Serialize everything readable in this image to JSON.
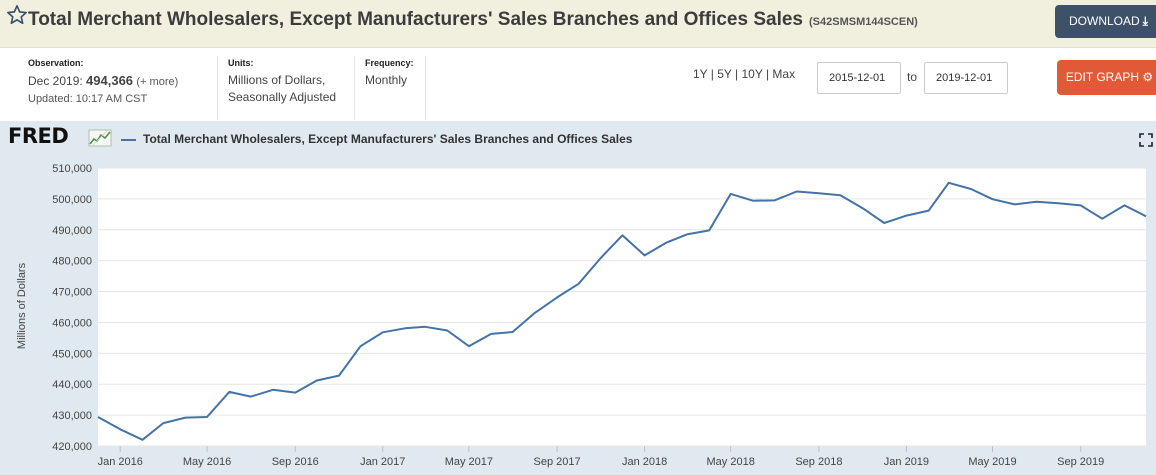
{
  "header": {
    "title": "Total Merchant Wholesalers, Except Manufacturers' Sales Branches and Offices Sales",
    "series_id": "(S42SMSM144SCEN)",
    "download_label": "DOWNLOAD"
  },
  "observation": {
    "label": "Observation:",
    "period": "Dec 2019:",
    "value": "494,366",
    "more": "(+ more)",
    "updated": "Updated: 10:17 AM CST"
  },
  "units": {
    "label": "Units:",
    "line1": "Millions of Dollars,",
    "line2": "Seasonally Adjusted"
  },
  "frequency": {
    "label": "Frequency:",
    "value": "Monthly"
  },
  "controls": {
    "range_links": "1Y | 5Y | 10Y | Max",
    "start_date": "2015-12-01",
    "to_label": "to",
    "end_date": "2019-12-01",
    "edit_graph_label": "EDIT GRAPH"
  },
  "logo": {
    "text": "FRED"
  },
  "colors": {
    "series_line": "#4572a7",
    "plot_background": "#ffffff",
    "panel_background": "#e1e9f0",
    "download_button": "#3d5169",
    "edit_button": "#e05a37"
  },
  "icons": [
    "star-icon",
    "download-icon",
    "gear-icon",
    "fred-graph-icon",
    "fullscreen-icon"
  ],
  "chart_data": {
    "type": "line",
    "legend": "Total Merchant Wholesalers, Except Manufacturers' Sales Branches and Offices Sales",
    "ylabel": "Millions of Dollars",
    "ylim": [
      420000,
      510000
    ],
    "yticks": [
      420000,
      430000,
      440000,
      450000,
      460000,
      470000,
      480000,
      490000,
      500000,
      510000
    ],
    "ytick_labels": [
      "420,000",
      "430,000",
      "440,000",
      "450,000",
      "460,000",
      "470,000",
      "480,000",
      "490,000",
      "500,000",
      "510,000"
    ],
    "xlim": [
      "2015-12-01",
      "2019-12-01"
    ],
    "xticks": [
      "2016-01-01",
      "2016-05-01",
      "2016-09-01",
      "2017-01-01",
      "2017-05-01",
      "2017-09-01",
      "2018-01-01",
      "2018-05-01",
      "2018-09-01",
      "2019-01-01",
      "2019-05-01",
      "2019-09-01"
    ],
    "xtick_labels": [
      "Jan 2016",
      "May 2016",
      "Sep 2016",
      "Jan 2017",
      "May 2017",
      "Sep 2017",
      "Jan 2018",
      "May 2018",
      "Sep 2018",
      "Jan 2019",
      "May 2019",
      "Sep 2019"
    ],
    "grid": true,
    "series": [
      {
        "name": "Total Merchant Wholesalers, Except Manufacturers' Sales Branches and Offices Sales",
        "x": [
          "2015-12-01",
          "2016-01-01",
          "2016-02-01",
          "2016-03-01",
          "2016-04-01",
          "2016-05-01",
          "2016-06-01",
          "2016-07-01",
          "2016-08-01",
          "2016-09-01",
          "2016-10-01",
          "2016-11-01",
          "2016-12-01",
          "2017-01-01",
          "2017-02-01",
          "2017-03-01",
          "2017-04-01",
          "2017-05-01",
          "2017-06-01",
          "2017-07-01",
          "2017-08-01",
          "2017-09-01",
          "2017-10-01",
          "2017-11-01",
          "2017-12-01",
          "2018-01-01",
          "2018-02-01",
          "2018-03-01",
          "2018-04-01",
          "2018-05-01",
          "2018-06-01",
          "2018-07-01",
          "2018-08-01",
          "2018-09-01",
          "2018-10-01",
          "2018-11-01",
          "2018-12-01",
          "2019-01-01",
          "2019-02-01",
          "2019-03-01",
          "2019-04-01",
          "2019-05-01",
          "2019-06-01",
          "2019-07-01",
          "2019-08-01",
          "2019-09-01",
          "2019-10-01",
          "2019-11-01",
          "2019-12-01"
        ],
        "values": [
          429400,
          425400,
          422000,
          427400,
          429200,
          429400,
          437500,
          436000,
          438200,
          437300,
          441200,
          442800,
          452300,
          456800,
          458100,
          458600,
          457400,
          452300,
          456300,
          456900,
          463100,
          468100,
          472500,
          480900,
          488200,
          481700,
          485900,
          488500,
          489800,
          501600,
          499400,
          499500,
          502400,
          501800,
          501200,
          497000,
          492200,
          494600,
          496200,
          505200,
          503200,
          499900,
          498200,
          499100,
          498600,
          497900,
          493600,
          497900,
          494366
        ]
      }
    ]
  }
}
